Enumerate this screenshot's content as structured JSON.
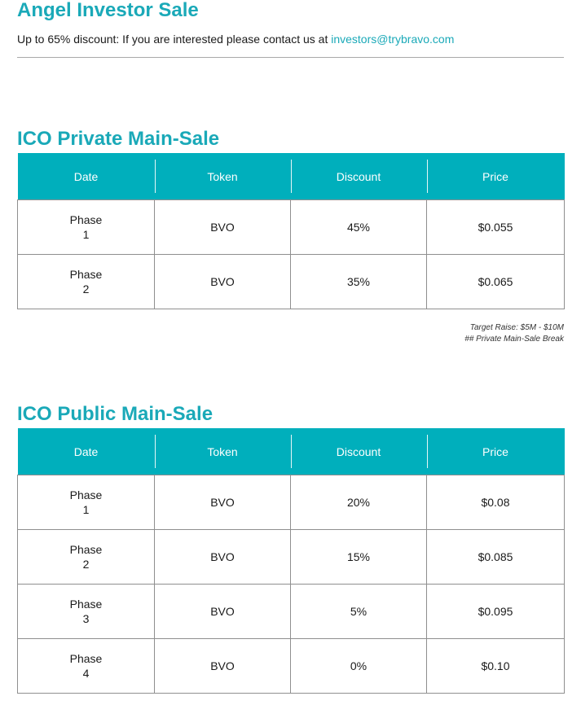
{
  "angel": {
    "title": "Angel Investor Sale",
    "intro_text": "Up to 65% discount: If you are interested please contact us at ",
    "email": "investors@trybravo.com"
  },
  "private_sale": {
    "title": "ICO Private Main-Sale",
    "headers": [
      "Date",
      "Token",
      "Discount",
      "Price"
    ],
    "rows": [
      {
        "phase_word": "Phase",
        "phase_num": "1",
        "token": "BVO",
        "discount": "45%",
        "price": "$0.055"
      },
      {
        "phase_word": "Phase",
        "phase_num": "2",
        "token": "BVO",
        "discount": "35%",
        "price": "$0.065"
      }
    ],
    "note_line1": "Target Raise: $5M - $10M",
    "note_line2": "## Private Main-Sale Break"
  },
  "public_sale": {
    "title": "ICO Public Main-Sale",
    "headers": [
      "Date",
      "Token",
      "Discount",
      "Price"
    ],
    "rows": [
      {
        "phase_word": "Phase",
        "phase_num": "1",
        "token": "BVO",
        "discount": "20%",
        "price": "$0.08"
      },
      {
        "phase_word": "Phase",
        "phase_num": "2",
        "token": "BVO",
        "discount": "15%",
        "price": "$0.085"
      },
      {
        "phase_word": "Phase",
        "phase_num": "3",
        "token": "BVO",
        "discount": "5%",
        "price": "$0.095"
      },
      {
        "phase_word": "Phase",
        "phase_num": "4",
        "token": "BVO",
        "discount": "0%",
        "price": "$0.10"
      }
    ]
  },
  "colors": {
    "accent": "#1aa9b8",
    "header_bg": "#00afbc",
    "border": "#8f8f8f"
  }
}
